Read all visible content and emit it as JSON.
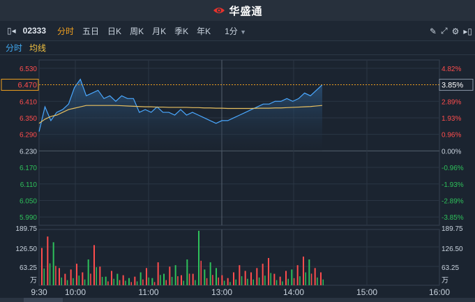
{
  "brand": {
    "name": "华盛通",
    "logo_icon": "eye-logo-icon"
  },
  "toolbar": {
    "code": "02333",
    "periods": [
      "分时",
      "五日",
      "日K",
      "周K",
      "月K",
      "季K",
      "年K"
    ],
    "active_period": "分时",
    "interval": "1分",
    "icons": [
      "collapse-left-icon",
      "pencil-icon",
      "expand-icon",
      "settings-icon",
      "collapse-right-icon"
    ]
  },
  "subbar": {
    "tab1": "分时",
    "tab2": "均线"
  },
  "colors": {
    "up": "#ff4d4d",
    "down": "#2ec05a",
    "price_line": "#4aa8ff",
    "avg_line": "#e8c060",
    "dashed": "#f0a020"
  },
  "chart_data": {
    "type": "line",
    "prev_close": 6.23,
    "current_price_label": "6.470",
    "current_pct_label": "3.85%",
    "y_left_labels": [
      "6.530",
      "6.410",
      "6.350",
      "6.290",
      "6.230",
      "6.170",
      "6.110",
      "6.050",
      "5.990"
    ],
    "y_right_labels": [
      "4.82%",
      "2.89%",
      "1.93%",
      "0.96%",
      "0.00%",
      "-0.96%",
      "-1.93%",
      "-2.89%",
      "-3.85%"
    ],
    "x_labels": [
      "9:30",
      "10:00",
      "11:00",
      "13:00",
      "14:00",
      "15:00",
      "16:00"
    ],
    "volume_labels": [
      "189.75",
      "126.50",
      "63.25",
      "万"
    ],
    "volume_labels_right": [
      "189.75",
      "126.50",
      "63.25",
      "万"
    ],
    "ylim": [
      5.96,
      6.56
    ],
    "vol_max": 189.75,
    "price": [
      6.3,
      6.39,
      6.34,
      6.37,
      6.38,
      6.4,
      6.46,
      6.49,
      6.43,
      6.44,
      6.45,
      6.42,
      6.43,
      6.41,
      6.43,
      6.42,
      6.42,
      6.37,
      6.38,
      6.37,
      6.39,
      6.37,
      6.37,
      6.36,
      6.38,
      6.36,
      6.37,
      6.36,
      6.35,
      6.34,
      6.33,
      6.34,
      6.34,
      6.35,
      6.36,
      6.37,
      6.38,
      6.39,
      6.4,
      6.4,
      6.41,
      6.41,
      6.42,
      6.41,
      6.42,
      6.44,
      6.43,
      6.45,
      6.47
    ],
    "avg": [
      6.33,
      6.345,
      6.355,
      6.36,
      6.37,
      6.38,
      6.385,
      6.39,
      6.395,
      6.395,
      6.395,
      6.395,
      6.395,
      6.395,
      6.394,
      6.393,
      6.392,
      6.391,
      6.39,
      6.39,
      6.389,
      6.389,
      6.388,
      6.388,
      6.388,
      6.388,
      6.387,
      6.387,
      6.386,
      6.386,
      6.385,
      6.385,
      6.384,
      6.384,
      6.384,
      6.384,
      6.384,
      6.385,
      6.385,
      6.385,
      6.386,
      6.386,
      6.387,
      6.388,
      6.389,
      6.39,
      6.391,
      6.393,
      6.395
    ],
    "volume": [
      130,
      170,
      150,
      60,
      40,
      55,
      75,
      45,
      90,
      140,
      65,
      30,
      50,
      40,
      35,
      25,
      30,
      45,
      60,
      25,
      80,
      40,
      65,
      70,
      35,
      90,
      40,
      190,
      55,
      80,
      60,
      35,
      25,
      45,
      70,
      50,
      45,
      60,
      75,
      95,
      40,
      30,
      50,
      55,
      70,
      100,
      90,
      60,
      45
    ]
  }
}
